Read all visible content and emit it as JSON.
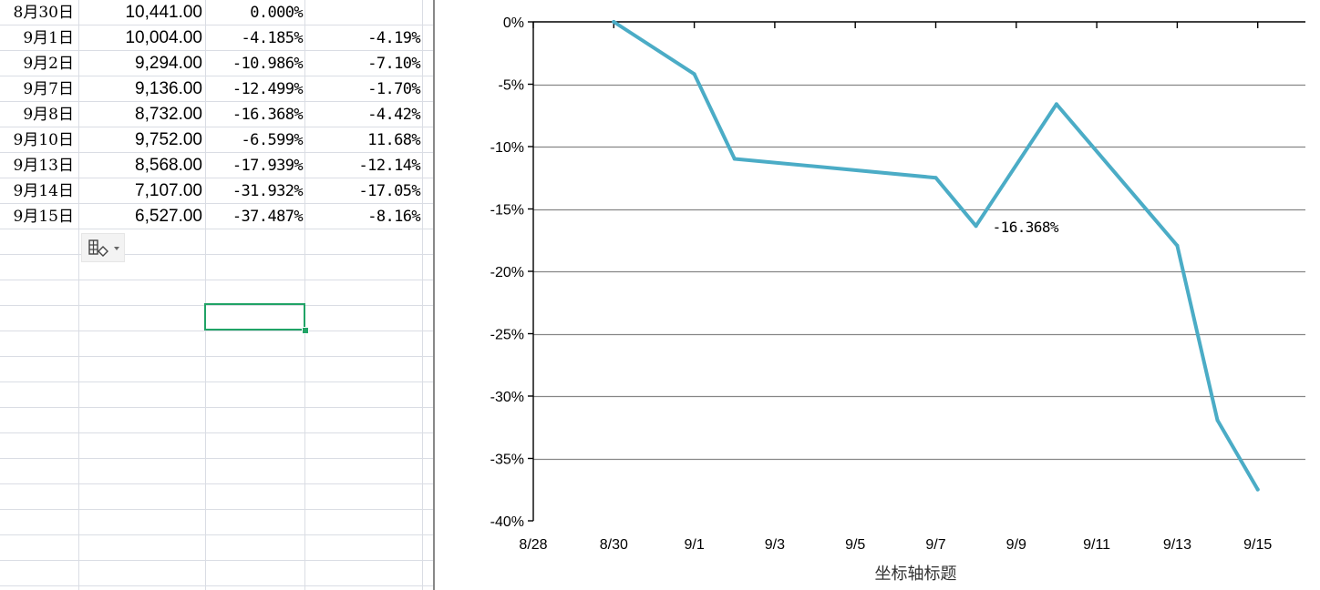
{
  "sheet": {
    "rows": [
      {
        "date": "8月30日",
        "value": "10,441.00",
        "cumulative": "0.000%",
        "change": ""
      },
      {
        "date": "9月1日",
        "value": "10,004.00",
        "cumulative": "-4.185%",
        "change": "-4.19%"
      },
      {
        "date": "9月2日",
        "value": "9,294.00",
        "cumulative": "-10.986%",
        "change": "-7.10%"
      },
      {
        "date": "9月7日",
        "value": "9,136.00",
        "cumulative": "-12.499%",
        "change": "-1.70%"
      },
      {
        "date": "9月8日",
        "value": "8,732.00",
        "cumulative": "-16.368%",
        "change": "-4.42%"
      },
      {
        "date": "9月10日",
        "value": "9,752.00",
        "cumulative": "-6.599%",
        "change": "11.68%"
      },
      {
        "date": "9月13日",
        "value": "8,568.00",
        "cumulative": "-17.939%",
        "change": "-12.14%"
      },
      {
        "date": "9月14日",
        "value": "7,107.00",
        "cumulative": "-31.932%",
        "change": "-17.05%"
      },
      {
        "date": "9月15日",
        "value": "6,527.00",
        "cumulative": "-37.487%",
        "change": "-8.16%"
      }
    ],
    "paste_options_icon": "paste-options-icon",
    "selection_color": "#21a366"
  },
  "chart_data": {
    "type": "line",
    "title": "",
    "xlabel": "坐标轴标题",
    "ylabel": "",
    "x": [
      "8/30",
      "9/1",
      "9/2",
      "9/7",
      "9/8",
      "9/10",
      "9/13",
      "9/14",
      "9/15"
    ],
    "series": [
      {
        "values": [
          0.0,
          -4.185,
          -10.986,
          -12.499,
          -16.368,
          -6.599,
          -17.939,
          -31.932,
          -37.487
        ],
        "color": "#4bacc6"
      }
    ],
    "x_range": [
      "8/28",
      "9/16"
    ],
    "x_ticks": [
      "8/28",
      "8/30",
      "9/1",
      "9/3",
      "9/5",
      "9/7",
      "9/9",
      "9/11",
      "9/13",
      "9/15"
    ],
    "ylim": [
      -40,
      0
    ],
    "y_ticks": [
      0,
      -5,
      -10,
      -15,
      -20,
      -25,
      -30,
      -35,
      -40
    ],
    "y_tick_labels": [
      "0%",
      "-5%",
      "-10%",
      "-15%",
      "-20%",
      "-25%",
      "-30%",
      "-35%",
      "-40%"
    ],
    "data_labels": [
      {
        "x": "9/8",
        "text": "-16.368%"
      }
    ],
    "gridlines": true,
    "legend": "none",
    "line_color": "#4bacc6",
    "grid_color": "#868686"
  }
}
